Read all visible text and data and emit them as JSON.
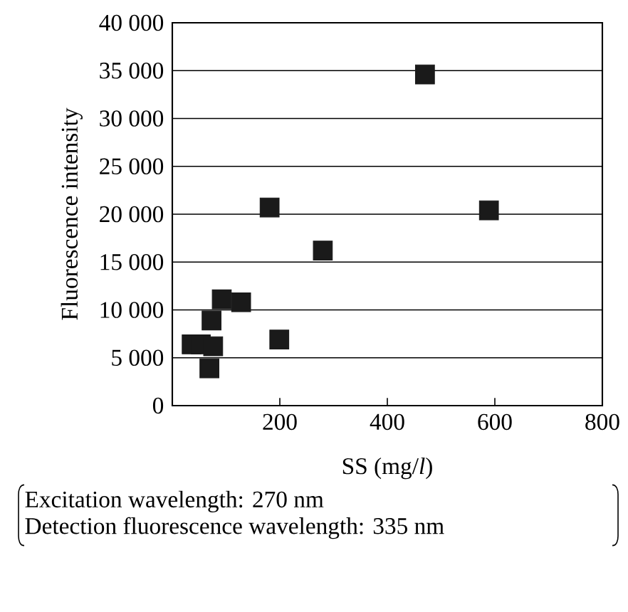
{
  "chart_data": {
    "type": "scatter",
    "xlabel": "SS (mg/*l*)",
    "ylabel": "Fluorescence intensity",
    "x": [
      470,
      181,
      589,
      280,
      92,
      128,
      73,
      36,
      53,
      76,
      199,
      69
    ],
    "values": [
      34600,
      20700,
      20400,
      16200,
      11100,
      10800,
      8900,
      6400,
      6400,
      6200,
      6900,
      3900
    ],
    "color": "#1a1a1a",
    "marker": "square",
    "grid": "y",
    "xlim": [
      0,
      800
    ],
    "xticks": [
      200,
      400,
      600,
      800
    ],
    "ylim": [
      0,
      40000
    ],
    "yticks": [
      0,
      {
        "value": 5000,
        "label": "5 000"
      },
      {
        "value": 10000,
        "label": "10 000"
      },
      {
        "value": 15000,
        "label": "15 000"
      },
      {
        "value": 20000,
        "label": "20 000"
      },
      {
        "value": 25000,
        "label": "25 000"
      },
      {
        "value": 30000,
        "label": "30 000"
      },
      {
        "value": 35000,
        "label": "35 000"
      },
      {
        "value": 40000,
        "label": "40 000"
      }
    ],
    "annotations": [
      "Excitation wavelength: 270 nm",
      "Detection fluorescence wavelength: 335 nm"
    ]
  }
}
